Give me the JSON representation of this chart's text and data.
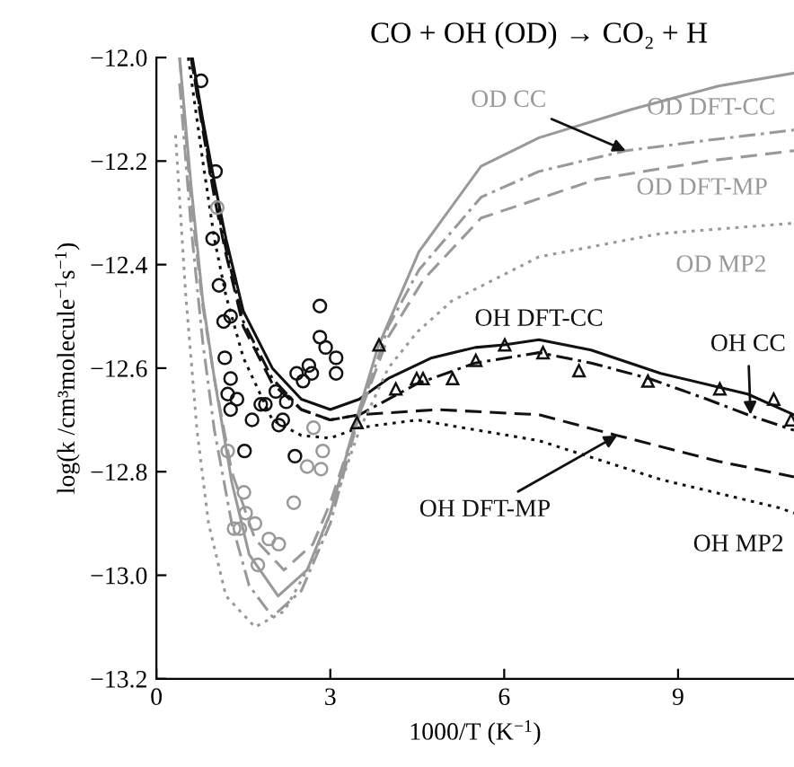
{
  "chart_data": {
    "type": "line",
    "title": "CO + OH (OD) → CO₂ + H",
    "xlabel": "1000/T (K$^{−1}$)",
    "ylabel": "log(k /cm³molecule$^{−1}$s$^{−1}$)",
    "xlim": [
      0,
      11
    ],
    "xticks": [
      0,
      3,
      6,
      9
    ],
    "ylim": [
      -13.2,
      -12.0
    ],
    "yticks": [
      {
        "value": -13.2,
        "label": "−13.2"
      },
      {
        "value": -13.0,
        "label": "−13.0"
      },
      {
        "value": -12.8,
        "label": "−12.8"
      },
      {
        "value": -12.6,
        "label": "−12.6"
      },
      {
        "value": -12.4,
        "label": "−12.4"
      },
      {
        "value": -12.2,
        "label": "−12.2"
      },
      {
        "value": -12.0,
        "label": "−12.0"
      }
    ],
    "grid": false,
    "legend": false,
    "series": [
      {
        "type": "line",
        "color": "#111111",
        "line_style": "solid",
        "marker": "none",
        "x": [
          0.62,
          0.8,
          1.0,
          1.2,
          1.5,
          2.0,
          2.5,
          3.0,
          3.5,
          4.0,
          4.75,
          5.5,
          6.0,
          6.6,
          7.5,
          8.7,
          10.2,
          11.0
        ],
        "values": [
          -12.0,
          -12.12,
          -12.24,
          -12.35,
          -12.49,
          -12.6,
          -12.66,
          -12.68,
          -12.66,
          -12.62,
          -12.58,
          -12.56,
          -12.555,
          -12.545,
          -12.565,
          -12.61,
          -12.65,
          -12.69
        ]
      },
      {
        "type": "line",
        "color": "#111111",
        "line_style": "dashdot",
        "marker": "none",
        "x": [
          0.6,
          0.8,
          1.0,
          1.2,
          1.5,
          2.0,
          2.5,
          3.0,
          3.5,
          4.5,
          5.5,
          6.6,
          7.5,
          8.5,
          9.5,
          10.2,
          11.0
        ],
        "values": [
          -12.0,
          -12.13,
          -12.26,
          -12.37,
          -12.51,
          -12.62,
          -12.68,
          -12.7,
          -12.69,
          -12.63,
          -12.59,
          -12.57,
          -12.59,
          -12.62,
          -12.66,
          -12.69,
          -12.72
        ]
      },
      {
        "type": "line",
        "color": "#111111",
        "line_style": "dashed",
        "marker": "none",
        "x": [
          0.6,
          0.8,
          1.0,
          1.2,
          1.5,
          2.0,
          2.5,
          3.0,
          3.5,
          4.85,
          6.6,
          7.95,
          9.7,
          11.0
        ],
        "values": [
          -12.0,
          -12.14,
          -12.27,
          -12.38,
          -12.52,
          -12.63,
          -12.68,
          -12.7,
          -12.69,
          -12.68,
          -12.69,
          -12.73,
          -12.78,
          -12.81
        ]
      },
      {
        "type": "line",
        "color": "#111111",
        "line_style": "dotted",
        "marker": "none",
        "x": [
          0.55,
          0.8,
          1.0,
          1.2,
          1.5,
          2.0,
          2.5,
          3.0,
          3.5,
          4.5,
          6.6,
          8.7,
          10.75,
          11.0
        ],
        "values": [
          -12.0,
          -12.2,
          -12.35,
          -12.46,
          -12.58,
          -12.7,
          -12.73,
          -12.735,
          -12.715,
          -12.7,
          -12.74,
          -12.815,
          -12.87,
          -12.88
        ]
      },
      {
        "type": "line",
        "color": "#999999",
        "line_style": "solid",
        "marker": "none",
        "x": [
          0.4,
          0.6,
          0.8,
          1.0,
          1.3,
          1.6,
          2.1,
          2.6,
          3.0,
          3.5,
          3.82,
          4.53,
          5.6,
          6.6,
          8.2,
          9.7,
          11.0
        ],
        "values": [
          -12.0,
          -12.25,
          -12.47,
          -12.62,
          -12.82,
          -12.96,
          -13.04,
          -12.99,
          -12.88,
          -12.68,
          -12.56,
          -12.375,
          -12.21,
          -12.155,
          -12.1,
          -12.055,
          -12.03
        ]
      },
      {
        "type": "line",
        "color": "#999999",
        "line_style": "dashdot",
        "marker": "none",
        "x": [
          0.4,
          0.6,
          0.8,
          1.0,
          1.3,
          1.6,
          2.0,
          2.5,
          3.0,
          3.5,
          4.0,
          4.53,
          5.6,
          6.6,
          8.1,
          9.5,
          11.0
        ],
        "values": [
          -12.05,
          -12.33,
          -12.55,
          -12.72,
          -12.9,
          -13.02,
          -13.08,
          -13.03,
          -12.9,
          -12.69,
          -12.52,
          -12.41,
          -12.27,
          -12.22,
          -12.18,
          -12.16,
          -12.14
        ]
      },
      {
        "type": "line",
        "color": "#999999",
        "line_style": "dashed",
        "marker": "none",
        "x": [
          0.4,
          0.6,
          0.8,
          1.0,
          1.3,
          1.7,
          2.2,
          2.7,
          3.0,
          3.5,
          4.0,
          4.6,
          5.6,
          7.6,
          9.5,
          11.0
        ],
        "values": [
          -12.0,
          -12.28,
          -12.48,
          -12.62,
          -12.8,
          -12.93,
          -12.99,
          -12.94,
          -12.86,
          -12.69,
          -12.54,
          -12.43,
          -12.31,
          -12.235,
          -12.2,
          -12.18
        ]
      },
      {
        "type": "line",
        "color": "#999999",
        "line_style": "dotted",
        "marker": "none",
        "x": [
          0.33,
          0.5,
          0.7,
          0.9,
          1.2,
          1.7,
          2.2,
          2.7,
          3.0,
          3.5,
          4.0,
          4.5,
          5.1,
          6.6,
          8.7,
          11.0
        ],
        "values": [
          -12.15,
          -12.45,
          -12.72,
          -12.9,
          -13.04,
          -13.1,
          -13.07,
          -12.97,
          -12.88,
          -12.72,
          -12.6,
          -12.53,
          -12.47,
          -12.385,
          -12.34,
          -12.32
        ]
      },
      {
        "type": "scatter",
        "color": "#111111",
        "marker": "circle",
        "x": [
          0.77,
          1.02,
          0.97,
          1.08,
          1.16,
          1.28,
          1.18,
          1.28,
          1.23,
          1.28,
          1.39,
          1.65,
          1.52,
          1.8,
          1.88,
          2.06,
          2.11,
          2.18,
          2.24,
          2.39,
          2.42,
          2.53,
          2.63,
          2.68,
          2.82,
          2.82,
          2.92,
          3.1,
          3.1
        ],
        "values": [
          -12.045,
          -12.22,
          -12.35,
          -12.44,
          -12.51,
          -12.5,
          -12.58,
          -12.62,
          -12.65,
          -12.68,
          -12.66,
          -12.7,
          -12.76,
          -12.67,
          -12.67,
          -12.645,
          -12.71,
          -12.7,
          -12.665,
          -12.77,
          -12.61,
          -12.625,
          -12.595,
          -12.61,
          -12.48,
          -12.54,
          -12.56,
          -12.58,
          -12.61
        ]
      },
      {
        "type": "scatter",
        "color": "#999999",
        "marker": "circle",
        "x": [
          1.05,
          1.23,
          1.51,
          1.54,
          1.34,
          1.44,
          1.7,
          1.75,
          1.94,
          2.11,
          2.37,
          2.6,
          2.71,
          2.87,
          2.84
        ],
        "values": [
          -12.29,
          -12.76,
          -12.84,
          -12.88,
          -12.91,
          -12.91,
          -12.9,
          -12.98,
          -12.93,
          -12.94,
          -12.86,
          -12.79,
          -12.715,
          -12.76,
          -12.795
        ]
      },
      {
        "type": "scatter",
        "color": "#111111",
        "marker": "triangle",
        "x": [
          3.46,
          3.84,
          4.13,
          4.49,
          4.6,
          5.11,
          5.51,
          6.01,
          6.67,
          7.29,
          8.48,
          9.72,
          10.65,
          10.95
        ],
        "values": [
          -12.705,
          -12.555,
          -12.64,
          -12.62,
          -12.62,
          -12.62,
          -12.585,
          -12.555,
          -12.57,
          -12.605,
          -12.625,
          -12.64,
          -12.66,
          -12.7
        ]
      }
    ],
    "annotations": [
      {
        "text": "OD DFT-CC",
        "x": 9.7,
        "y": -12.055
      },
      {
        "text": "OD CC",
        "x": 8.1,
        "y": -12.18
      },
      {
        "text": "OD DFT-MP",
        "x": 9.5,
        "y": -12.2
      },
      {
        "text": "OD MP2",
        "x": 9.7,
        "y": -12.33
      },
      {
        "text": "OH DFT-CC",
        "x": 6.6,
        "y": -12.545
      },
      {
        "text": "OH CC",
        "x": 10.25,
        "y": -12.69
      },
      {
        "text": "OH DFT-MP",
        "x": 7.95,
        "y": -12.73
      },
      {
        "text": "OH MP2",
        "x": 10.3,
        "y": -12.86
      }
    ]
  }
}
